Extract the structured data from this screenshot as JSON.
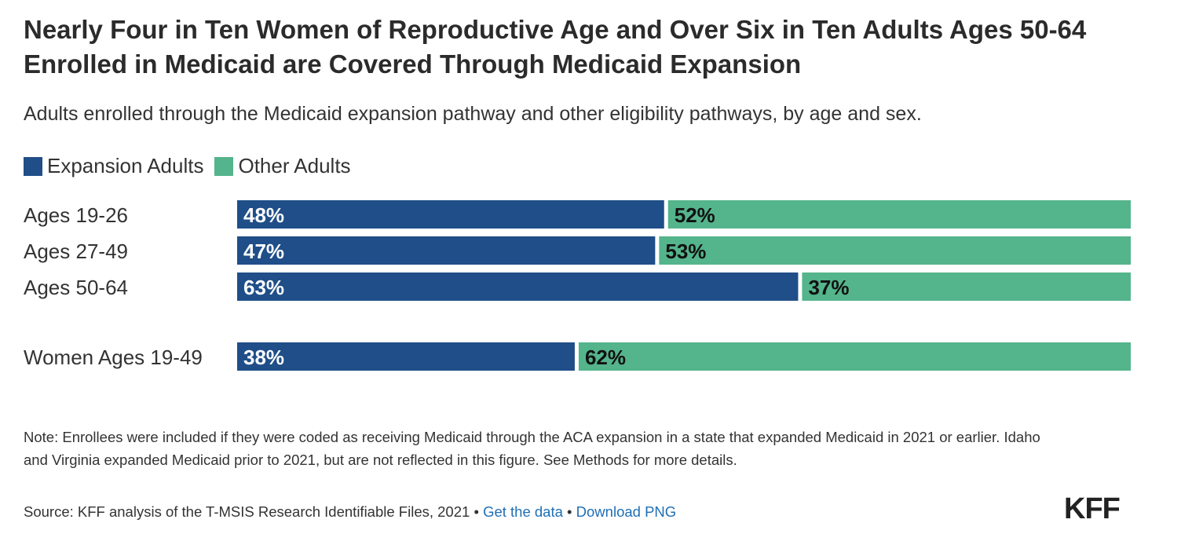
{
  "title": "Nearly Four in Ten Women of Reproductive Age and Over Six in Ten Adults Ages 50-64 Enrolled in Medicaid are Covered Through Medicaid Expansion",
  "subtitle": "Adults enrolled through the Medicaid expansion pathway and other eligibility pathways, by age and sex.",
  "legend": [
    {
      "label": "Expansion Adults",
      "color": "#1f4e88"
    },
    {
      "label": "Other Adults",
      "color": "#54b48c"
    }
  ],
  "chart_data": {
    "type": "bar",
    "orientation": "horizontal",
    "stacked": true,
    "percent": true,
    "categories": [
      "Ages 19-26",
      "Ages 27-49",
      "Ages 50-64",
      "Women Ages 19-49"
    ],
    "series": [
      {
        "name": "Expansion Adults",
        "values": [
          48,
          47,
          63,
          38
        ],
        "color": "#1f4e88"
      },
      {
        "name": "Other Adults",
        "values": [
          52,
          53,
          37,
          62
        ],
        "color": "#54b48c"
      }
    ],
    "xlim": [
      0,
      100
    ],
    "value_suffix": "%"
  },
  "note": "Note: Enrollees were included if they were coded as receiving Medicaid through the ACA expansion in a state that expanded Medicaid in 2021 or earlier. Idaho and Virginia expanded Medicaid prior to 2021, but are not reflected in this figure. See Methods for more details.",
  "source": {
    "text": "Source: KFF analysis of the T-MSIS Research Identifiable Files, 2021",
    "separator": "•",
    "get_data": "Get the data",
    "download": "Download PNG"
  },
  "logo": "KFF"
}
